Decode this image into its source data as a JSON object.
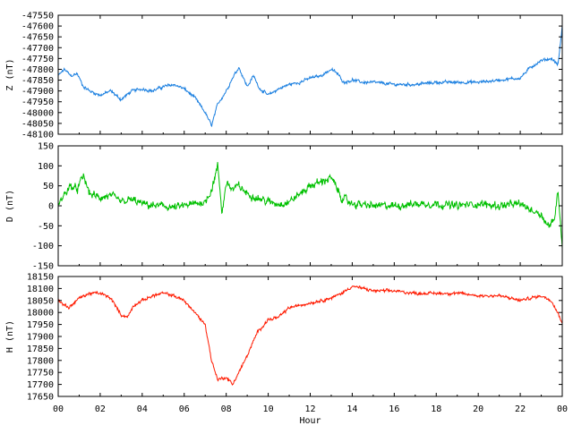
{
  "chart_data": {
    "type": "line",
    "xlabel": "Hour",
    "x_ticks": [
      "00",
      "02",
      "04",
      "06",
      "08",
      "10",
      "12",
      "14",
      "16",
      "18",
      "20",
      "22",
      "00"
    ],
    "xlim": [
      0,
      24
    ],
    "panels": [
      {
        "name": "Z",
        "ylabel": "Z (nT)",
        "color": "#1a7fe0",
        "ylim": [
          -48100,
          -47550
        ],
        "y_ticks": [
          -47550,
          -47600,
          -47650,
          -47700,
          -47750,
          -47800,
          -47850,
          -47900,
          -47950,
          -48000,
          -48050,
          -48100
        ],
        "series": {
          "x": [
            0,
            0.3,
            0.6,
            0.9,
            1.2,
            1.5,
            2.0,
            2.5,
            3.0,
            3.5,
            4.0,
            4.5,
            5.0,
            5.5,
            6.0,
            6.5,
            7.0,
            7.3,
            7.6,
            8.0,
            8.3,
            8.6,
            9.0,
            9.3,
            9.6,
            10.0,
            10.5,
            11.0,
            11.5,
            12.0,
            12.5,
            13.0,
            13.3,
            13.6,
            14.0,
            14.5,
            15.0,
            16.0,
            17.0,
            18.0,
            19.0,
            20.0,
            21.0,
            22.0,
            22.5,
            23.0,
            23.5,
            23.8,
            24.0
          ],
          "values": [
            -47830,
            -47800,
            -47830,
            -47820,
            -47880,
            -47900,
            -47920,
            -47900,
            -47940,
            -47900,
            -47890,
            -47900,
            -47880,
            -47870,
            -47890,
            -47930,
            -48000,
            -48060,
            -47960,
            -47900,
            -47840,
            -47790,
            -47880,
            -47830,
            -47890,
            -47920,
            -47890,
            -47870,
            -47860,
            -47840,
            -47830,
            -47800,
            -47820,
            -47860,
            -47850,
            -47860,
            -47860,
            -47870,
            -47870,
            -47860,
            -47860,
            -47860,
            -47850,
            -47840,
            -47790,
            -47760,
            -47750,
            -47780,
            -47600
          ]
        }
      },
      {
        "name": "D",
        "ylabel": "D (nT)",
        "color": "#00c000",
        "ylim": [
          -150,
          150
        ],
        "y_ticks": [
          150,
          100,
          50,
          0,
          -50,
          -100,
          -150
        ],
        "series": {
          "x": [
            0,
            0.3,
            0.6,
            0.9,
            1.2,
            1.5,
            2.0,
            2.5,
            3.0,
            3.5,
            4.0,
            4.5,
            5.0,
            5.5,
            6.0,
            6.5,
            7.0,
            7.3,
            7.6,
            7.8,
            8.0,
            8.3,
            8.6,
            9.0,
            9.5,
            10.0,
            10.5,
            11.0,
            11.5,
            12.0,
            12.5,
            13.0,
            13.5,
            14.0,
            15.0,
            16.0,
            17.0,
            18.0,
            19.0,
            20.0,
            21.0,
            22.0,
            22.5,
            23.0,
            23.3,
            23.6,
            23.8,
            24.0
          ],
          "values": [
            0,
            30,
            50,
            40,
            75,
            30,
            20,
            25,
            10,
            15,
            5,
            0,
            0,
            -5,
            0,
            5,
            10,
            40,
            100,
            -20,
            60,
            40,
            50,
            30,
            20,
            10,
            5,
            10,
            30,
            50,
            60,
            70,
            20,
            5,
            0,
            0,
            5,
            5,
            0,
            5,
            0,
            5,
            -10,
            -20,
            -50,
            -40,
            40,
            -100
          ]
        }
      },
      {
        "name": "H",
        "ylabel": "H (nT)",
        "color": "#ff1a00",
        "ylim": [
          17650,
          18150
        ],
        "y_ticks": [
          18150,
          18100,
          18050,
          18000,
          17950,
          17900,
          17850,
          17800,
          17750,
          17700,
          17650
        ],
        "series": {
          "x": [
            0,
            0.5,
            1.0,
            1.5,
            2.0,
            2.5,
            3.0,
            3.3,
            3.6,
            4.0,
            4.5,
            5.0,
            5.5,
            6.0,
            6.5,
            7.0,
            7.3,
            7.6,
            8.0,
            8.3,
            8.6,
            9.0,
            9.5,
            10.0,
            10.5,
            11.0,
            11.5,
            12.0,
            12.5,
            13.0,
            13.5,
            14.0,
            14.5,
            15.0,
            16.0,
            17.0,
            18.0,
            19.0,
            20.0,
            21.0,
            22.0,
            22.5,
            23.0,
            23.5,
            24.0
          ],
          "values": [
            18050,
            18020,
            18060,
            18080,
            18080,
            18060,
            17990,
            17980,
            18030,
            18050,
            18070,
            18080,
            18070,
            18050,
            18000,
            17950,
            17800,
            17720,
            17730,
            17700,
            17750,
            17820,
            17920,
            17970,
            17980,
            18020,
            18030,
            18040,
            18050,
            18060,
            18080,
            18110,
            18100,
            18090,
            18090,
            18080,
            18080,
            18080,
            18070,
            18070,
            18050,
            18060,
            18070,
            18050,
            17960
          ]
        }
      }
    ]
  }
}
